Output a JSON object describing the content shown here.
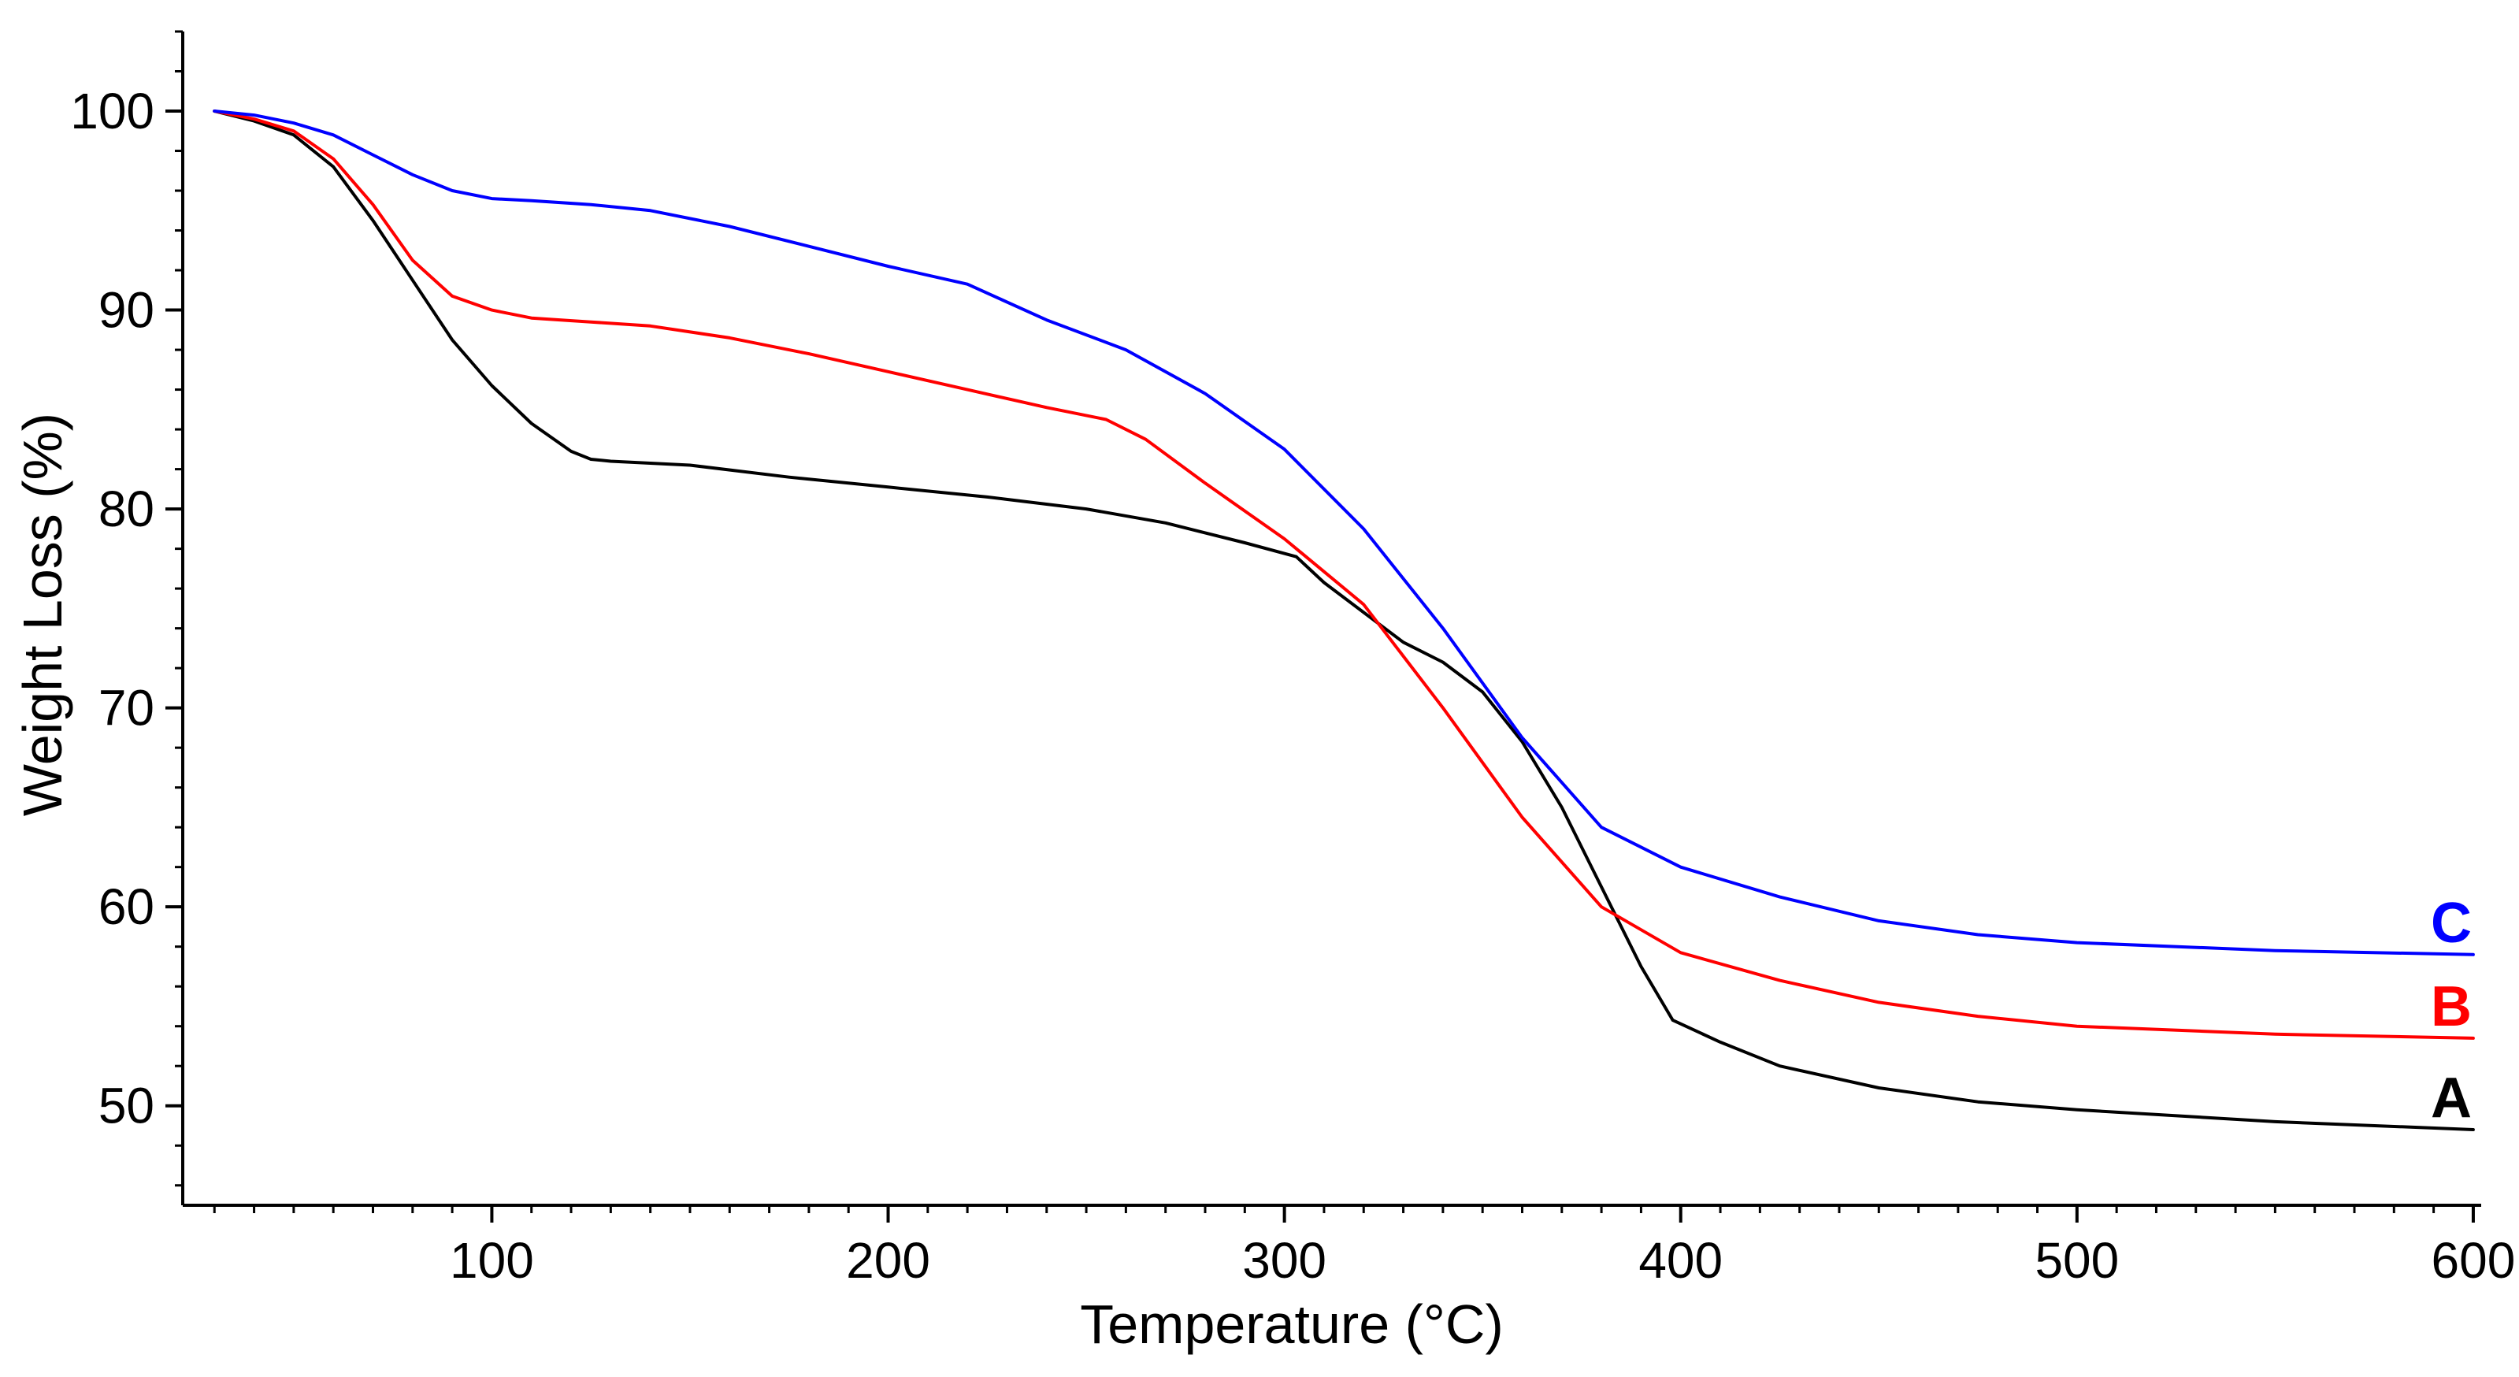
{
  "chart_data": {
    "type": "line",
    "title": "",
    "xlabel": "Temperature (°C)",
    "ylabel": "Weight Loss (%)",
    "xlim": [
      22,
      602
    ],
    "ylim": [
      45,
      104
    ],
    "x_ticks": [
      100,
      200,
      300,
      400,
      500,
      600
    ],
    "x_tick_labels": [
      "100",
      "200",
      "300",
      "400",
      "500",
      "600"
    ],
    "y_ticks": [
      50,
      60,
      70,
      80,
      90,
      100
    ],
    "y_tick_labels": [
      "50",
      "60",
      "70",
      "80",
      "90",
      "100"
    ],
    "grid": false,
    "series": [
      {
        "name": "A",
        "label": "A",
        "color": "#000000",
        "x": [
          30,
          40,
          50,
          60,
          70,
          80,
          90,
          100,
          110,
          120,
          125,
          130,
          150,
          175,
          200,
          225,
          250,
          270,
          290,
          303,
          310,
          320,
          330,
          340,
          350,
          360,
          370,
          380,
          390,
          398,
          410,
          425,
          450,
          475,
          500,
          550,
          600
        ],
        "y": [
          100,
          99.5,
          98.8,
          97.2,
          94.5,
          91.5,
          88.5,
          86.2,
          84.3,
          82.9,
          82.5,
          82.4,
          82.2,
          81.6,
          81.1,
          80.6,
          80.0,
          79.3,
          78.3,
          77.6,
          76.3,
          74.8,
          73.3,
          72.3,
          70.8,
          68.3,
          65.0,
          61.0,
          57.0,
          54.3,
          53.2,
          52.0,
          50.9,
          50.2,
          49.8,
          49.2,
          48.8
        ]
      },
      {
        "name": "B",
        "label": "B",
        "color": "#ff0000",
        "x": [
          30,
          40,
          50,
          60,
          70,
          80,
          90,
          100,
          110,
          125,
          140,
          160,
          180,
          200,
          220,
          240,
          255,
          265,
          280,
          300,
          320,
          340,
          360,
          380,
          400,
          425,
          450,
          475,
          500,
          550,
          600
        ],
        "y": [
          100,
          99.6,
          99.0,
          97.6,
          95.3,
          92.5,
          90.7,
          90.0,
          89.6,
          89.4,
          89.2,
          88.6,
          87.8,
          86.9,
          86.0,
          85.1,
          84.5,
          83.5,
          81.3,
          78.5,
          75.2,
          70.0,
          64.5,
          60.0,
          57.7,
          56.3,
          55.2,
          54.5,
          54.0,
          53.6,
          53.4
        ]
      },
      {
        "name": "C",
        "label": "C",
        "color": "#0000ff",
        "x": [
          30,
          40,
          50,
          60,
          70,
          80,
          90,
          100,
          110,
          125,
          140,
          160,
          180,
          200,
          220,
          240,
          260,
          280,
          300,
          320,
          340,
          360,
          380,
          400,
          425,
          450,
          475,
          500,
          550,
          600
        ],
        "y": [
          100,
          99.8,
          99.4,
          98.8,
          97.8,
          96.8,
          96.0,
          95.6,
          95.5,
          95.3,
          95.0,
          94.2,
          93.2,
          92.2,
          91.3,
          89.5,
          88.0,
          85.8,
          83.0,
          79.0,
          74.0,
          68.5,
          64.0,
          62.0,
          60.5,
          59.3,
          58.6,
          58.2,
          57.8,
          57.6
        ]
      }
    ]
  }
}
